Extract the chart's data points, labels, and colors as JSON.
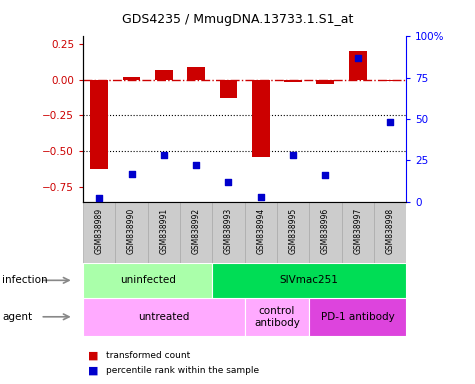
{
  "title": "GDS4235 / MmugDNA.13733.1.S1_at",
  "samples": [
    "GSM838989",
    "GSM838990",
    "GSM838991",
    "GSM838992",
    "GSM838993",
    "GSM838994",
    "GSM838995",
    "GSM838996",
    "GSM838997",
    "GSM838998"
  ],
  "bar_values": [
    -0.62,
    0.015,
    0.065,
    0.09,
    -0.13,
    -0.54,
    -0.02,
    -0.03,
    0.2,
    -0.01
  ],
  "scatter_values_pct": [
    2,
    17,
    28,
    22,
    12,
    3,
    28,
    16,
    87,
    48
  ],
  "bar_color": "#cc0000",
  "scatter_color": "#0000cc",
  "ylim_left": [
    -0.85,
    0.3
  ],
  "ylim_right": [
    0,
    100
  ],
  "yticks_left": [
    0.25,
    0.0,
    -0.25,
    -0.5,
    -0.75
  ],
  "yticks_right": [
    100,
    75,
    50,
    25,
    0
  ],
  "ytick_labels_right": [
    "100%",
    "75",
    "50",
    "25",
    "0"
  ],
  "hline_y": 0.0,
  "dotted_lines": [
    -0.25,
    -0.5
  ],
  "infection_groups": [
    {
      "label": "uninfected",
      "start": 0,
      "end": 4,
      "color": "#aaffaa"
    },
    {
      "label": "SIVmac251",
      "start": 4,
      "end": 10,
      "color": "#00dd55"
    }
  ],
  "agent_groups": [
    {
      "label": "untreated",
      "start": 0,
      "end": 5,
      "color": "#ffaaff"
    },
    {
      "label": "control\nantibody",
      "start": 5,
      "end": 7,
      "color": "#ffaaff"
    },
    {
      "label": "PD-1 antibody",
      "start": 7,
      "end": 10,
      "color": "#dd44dd"
    }
  ],
  "legend_bar_label": "transformed count",
  "legend_scatter_label": "percentile rank within the sample",
  "infection_label": "infection",
  "agent_label": "agent",
  "sample_bg_color": "#cccccc",
  "sample_border_color": "#aaaaaa"
}
